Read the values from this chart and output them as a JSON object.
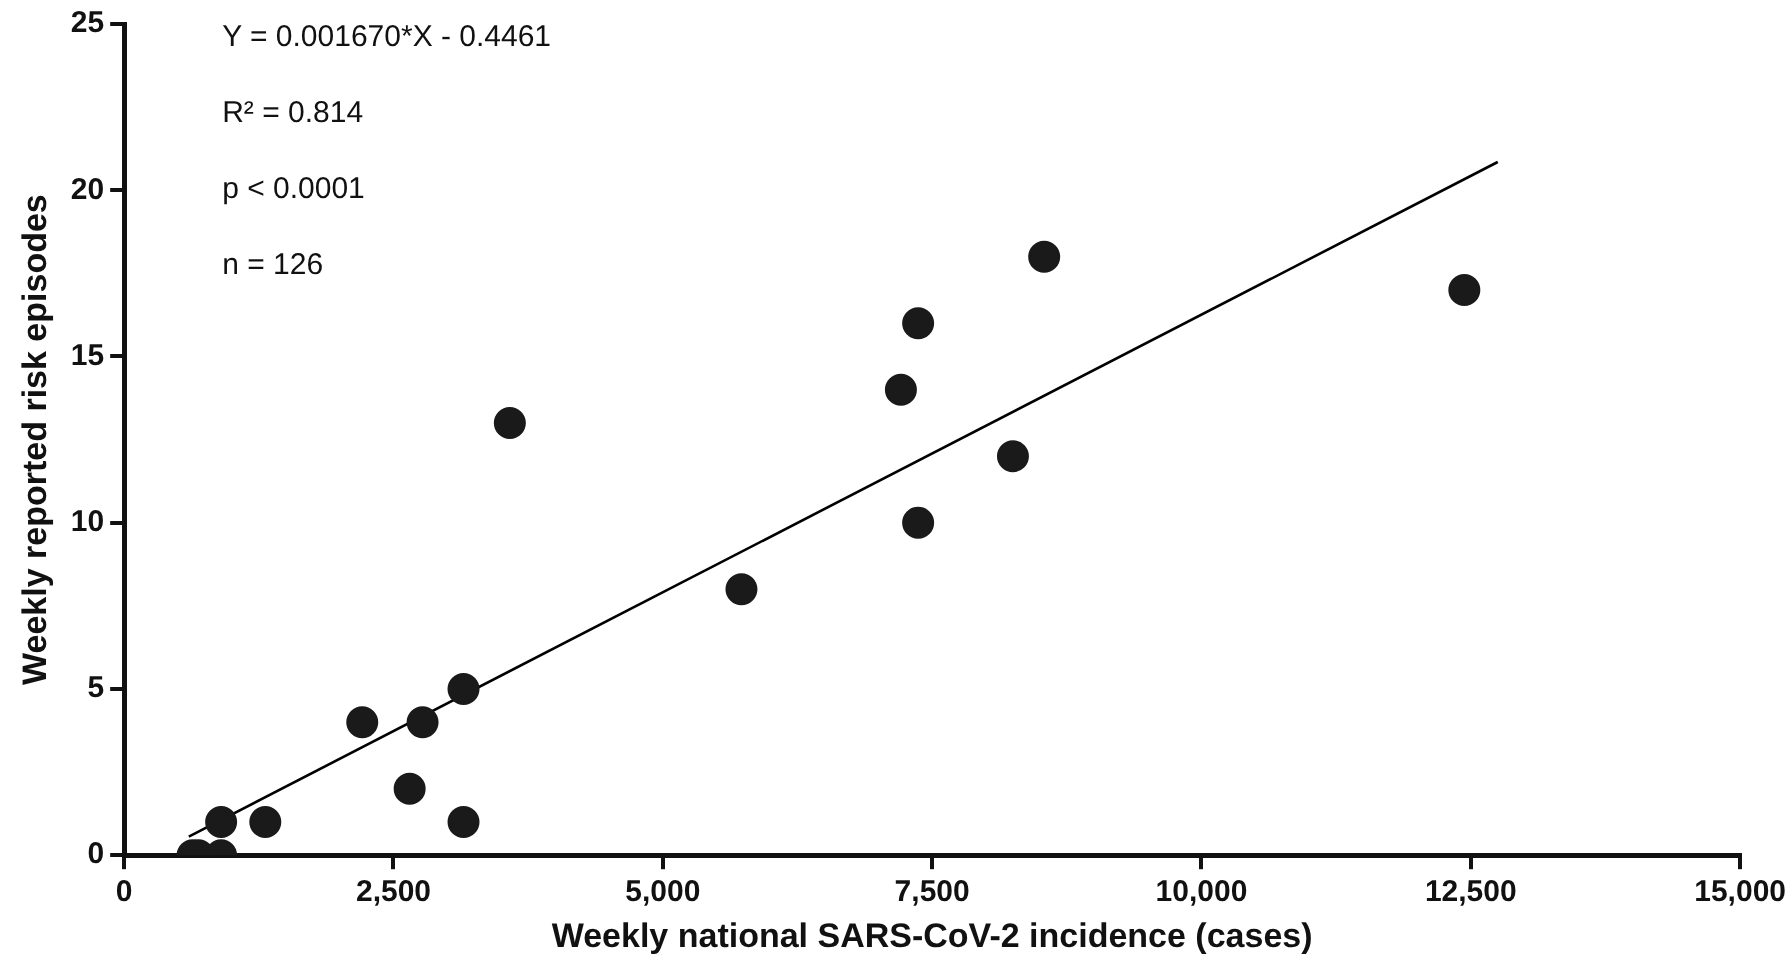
{
  "chart_data": {
    "type": "scatter",
    "xlabel": "Weekly national SARS-CoV-2 incidence (cases)",
    "ylabel": "Weekly reported risk episodes",
    "xlim": [
      0,
      15000
    ],
    "xticks": [
      0,
      {
        "value": 2500,
        "label": "2,500"
      },
      {
        "value": 5000,
        "label": "5,000"
      },
      {
        "value": 7500,
        "label": "7,500"
      },
      {
        "value": 10000,
        "label": "10,000"
      },
      {
        "value": 12500,
        "label": "12,500"
      },
      {
        "value": 15000,
        "label": "15,000"
      }
    ],
    "ylim": [
      0,
      25
    ],
    "yticks": [
      0,
      5,
      10,
      15,
      20,
      25
    ],
    "grid": false,
    "legend": false,
    "marker": "circle",
    "annotations": [
      "Y = 0.001670*X - 0.4461",
      "R² = 0.814",
      "p < 0.0001",
      "n = 126"
    ],
    "series": [
      {
        "type": "scatter",
        "color": "#1a1a1a",
        "x": [
          635,
          690,
          900,
          900,
          1310,
          2210,
          2650,
          2770,
          3150,
          3150,
          3580,
          5730,
          7210,
          7370,
          7370,
          8250,
          8540,
          12440
        ],
        "values": [
          0,
          0,
          0,
          1,
          1,
          4,
          2,
          4,
          5,
          1,
          13,
          8,
          14,
          16,
          10,
          12,
          18,
          17
        ]
      },
      {
        "type": "line",
        "color": "#000000",
        "marker": "none",
        "x": [
          600,
          12750
        ],
        "values": [
          0.56,
          20.85
        ]
      }
    ]
  }
}
